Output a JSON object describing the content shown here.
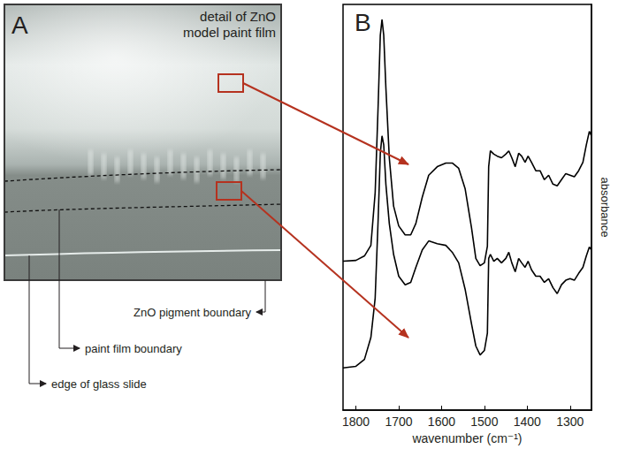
{
  "panel_a": {
    "letter": "A",
    "caption": "detail of ZnO model paint film",
    "labels": [
      "ZnO pigment boundary",
      "paint film boundary",
      "edge of glass slide"
    ]
  },
  "chart_data": {
    "letter": "B",
    "type": "line",
    "x_label": "wavenumber (cm⁻¹)",
    "y_label": "absorbance",
    "xlim": [
      1830,
      1250
    ],
    "xticks": [
      1800,
      1700,
      1600,
      1500,
      1400,
      1300
    ],
    "ylim": [
      0,
      100
    ],
    "tick_labels": "x",
    "grid": false,
    "x": [
      1830,
      1800,
      1780,
      1765,
      1755,
      1748,
      1743,
      1739,
      1735,
      1730,
      1722,
      1712,
      1700,
      1685,
      1672,
      1660,
      1645,
      1630,
      1610,
      1590,
      1575,
      1560,
      1545,
      1530,
      1520,
      1510,
      1500,
      1493,
      1490,
      1486,
      1478,
      1470,
      1460,
      1450,
      1443,
      1436,
      1428,
      1420,
      1413,
      1405,
      1398,
      1390,
      1380,
      1370,
      1360,
      1350,
      1340,
      1330,
      1320,
      1310,
      1300,
      1290,
      1280,
      1270,
      1262,
      1255,
      1250
    ],
    "series": [
      {
        "color": "#000000",
        "values": [
          36.7,
          36.9,
          38.0,
          40.6,
          53.6,
          75.2,
          92.4,
          96.3,
          92.4,
          79.5,
          62.2,
          50.3,
          45.4,
          43.2,
          43.2,
          46.0,
          52.5,
          57.9,
          60.0,
          60.9,
          60.9,
          59.6,
          54.6,
          44.9,
          37.4,
          35.6,
          36.3,
          40.4,
          60.0,
          63.9,
          63.1,
          62.6,
          62.2,
          63.1,
          63.9,
          62.2,
          60.0,
          63.3,
          62.6,
          61.1,
          62.6,
          61.1,
          59.0,
          59.0,
          56.8,
          57.9,
          55.7,
          55.3,
          56.8,
          58.3,
          57.9,
          57.5,
          59.0,
          61.1,
          65.4,
          68.7,
          67.6
        ]
      },
      {
        "color": "#000000",
        "values": [
          10.4,
          10.8,
          12.5,
          17.9,
          27.6,
          47.1,
          63.3,
          67.6,
          65.4,
          55.7,
          46.0,
          38.4,
          33.0,
          30.9,
          31.5,
          35.2,
          39.5,
          41.7,
          41.0,
          40.6,
          38.9,
          36.3,
          29.8,
          21.2,
          15.8,
          13.6,
          14.7,
          19.0,
          37.4,
          38.4,
          36.7,
          37.4,
          36.3,
          37.4,
          38.9,
          36.3,
          34.1,
          37.4,
          36.3,
          35.2,
          36.7,
          34.6,
          33.0,
          33.0,
          31.5,
          32.4,
          30.2,
          28.7,
          30.9,
          32.0,
          32.4,
          32.0,
          33.7,
          35.2,
          38.0,
          40.2,
          39.5
        ]
      }
    ]
  }
}
